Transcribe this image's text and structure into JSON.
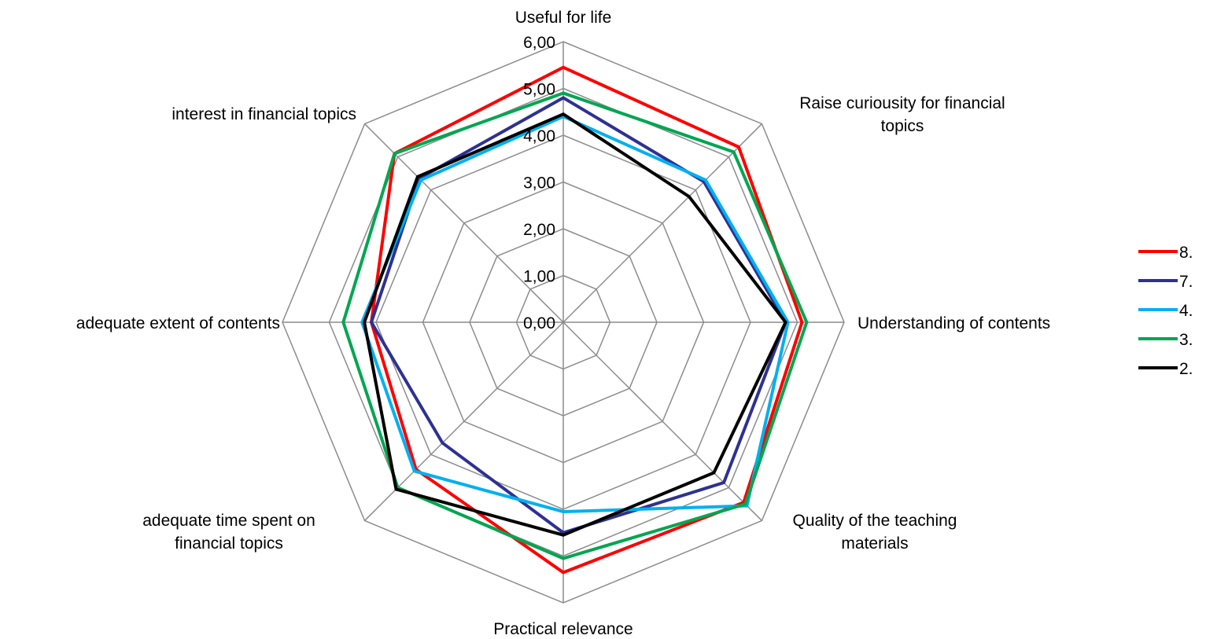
{
  "chart_data": {
    "type": "radar",
    "title": "",
    "axes": [
      "Useful for life",
      "Raise curiousity for financial topics",
      "Understanding of contents",
      "Quality of the teaching materials",
      "Practical relevance",
      "adequate time spent on financial topics",
      "adequate extent of contents",
      "interest in financial topics"
    ],
    "axis_label_lines": [
      [
        "Useful for life"
      ],
      [
        "Raise curiousity for financial",
        "topics"
      ],
      [
        "Understanding of contents"
      ],
      [
        "Quality of the teaching",
        "materials"
      ],
      [
        "Practical relevance"
      ],
      [
        "adequate time spent on",
        "financial topics"
      ],
      [
        "adequate extent of contents"
      ],
      [
        "interest in financial topics"
      ]
    ],
    "ticks": [
      "0,00",
      "1,00",
      "2,00",
      "3,00",
      "4,00",
      "5,00",
      "6,00"
    ],
    "rmax": 6,
    "grid": true,
    "legend_position": "right",
    "series": [
      {
        "name": "8.",
        "color": "#ff0000",
        "values": [
          5.45,
          5.3,
          5.1,
          5.45,
          5.35,
          4.45,
          4.1,
          5.1
        ]
      },
      {
        "name": "7.",
        "color": "#2e3192",
        "values": [
          4.8,
          4.25,
          4.75,
          4.85,
          4.5,
          3.65,
          4.1,
          4.35
        ]
      },
      {
        "name": "4.",
        "color": "#00b0f0",
        "values": [
          4.4,
          4.3,
          4.8,
          5.55,
          4.05,
          4.5,
          4.3,
          4.3
        ]
      },
      {
        "name": "3.",
        "color": "#00a651",
        "values": [
          4.9,
          5.15,
          5.2,
          5.5,
          5.05,
          5.0,
          4.7,
          5.1
        ]
      },
      {
        "name": "2.",
        "color": "#000000",
        "values": [
          4.45,
          3.8,
          4.75,
          4.55,
          4.55,
          5.05,
          4.25,
          4.4
        ]
      }
    ]
  }
}
